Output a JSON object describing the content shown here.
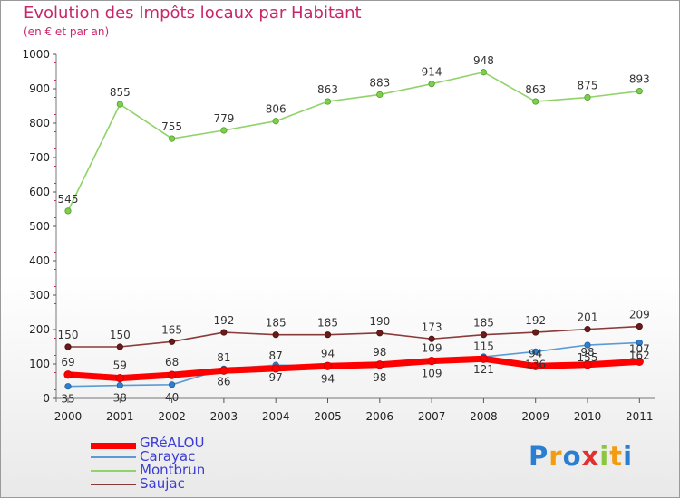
{
  "header": {
    "title": "Evolution des Impôts locaux par Habitant",
    "subtitle": "(en € et par an)"
  },
  "logo": {
    "text": "Proxiti",
    "letters": [
      "P",
      "r",
      "o",
      "x",
      "i",
      "t",
      "i"
    ],
    "colors": [
      "#2a7fd3",
      "#f39c12",
      "#2a7fd3",
      "#e03030",
      "#8cc63f",
      "#f39c12",
      "#2a7fd3"
    ]
  },
  "chart_data": {
    "type": "line",
    "title": "Evolution des Impôts locaux par Habitant",
    "subtitle": "(en € et par an)",
    "xlabel": "",
    "ylabel": "",
    "ylim": [
      0,
      1000
    ],
    "yticks": [
      0,
      100,
      200,
      300,
      400,
      500,
      600,
      700,
      800,
      900,
      1000
    ],
    "categories": [
      "2000",
      "2001",
      "2002",
      "2003",
      "2004",
      "2005",
      "2006",
      "2007",
      "2008",
      "2009",
      "2010",
      "2011"
    ],
    "legend_position": "bottom-left",
    "grid": false,
    "series": [
      {
        "name": "GRéALOU",
        "color": "#ff0000",
        "values": [
          69,
          59,
          68,
          81,
          87,
          94,
          98,
          109,
          115,
          94,
          98,
          107
        ],
        "labels": [
          "69",
          "59",
          "68",
          "81",
          "87",
          "94",
          "98",
          "109",
          "115",
          "94",
          "98",
          "107"
        ]
      },
      {
        "name": "Carayac",
        "color": "#5b9bd5",
        "values": [
          35,
          38,
          40,
          86,
          97,
          94,
          98,
          109,
          121,
          136,
          155,
          162
        ],
        "labels": [
          "35",
          "38",
          "40",
          "86",
          "97",
          "94",
          "98",
          "109",
          "121",
          "136",
          "155",
          "162"
        ]
      },
      {
        "name": "Montbrun",
        "color": "#8fd36a",
        "values": [
          545,
          855,
          755,
          779,
          806,
          863,
          883,
          914,
          948,
          863,
          875,
          893
        ],
        "labels": [
          "545",
          "855",
          "755",
          "779",
          "806",
          "863",
          "883",
          "914",
          "948",
          "863",
          "875",
          "893"
        ]
      },
      {
        "name": "Saujac",
        "color": "#8b3a3a",
        "values": [
          150,
          150,
          165,
          192,
          185,
          185,
          190,
          173,
          185,
          192,
          201,
          209
        ],
        "labels": [
          "150",
          "150",
          "165",
          "192",
          "185",
          "185",
          "190",
          "173",
          "185",
          "192",
          "201",
          "209"
        ]
      }
    ]
  }
}
